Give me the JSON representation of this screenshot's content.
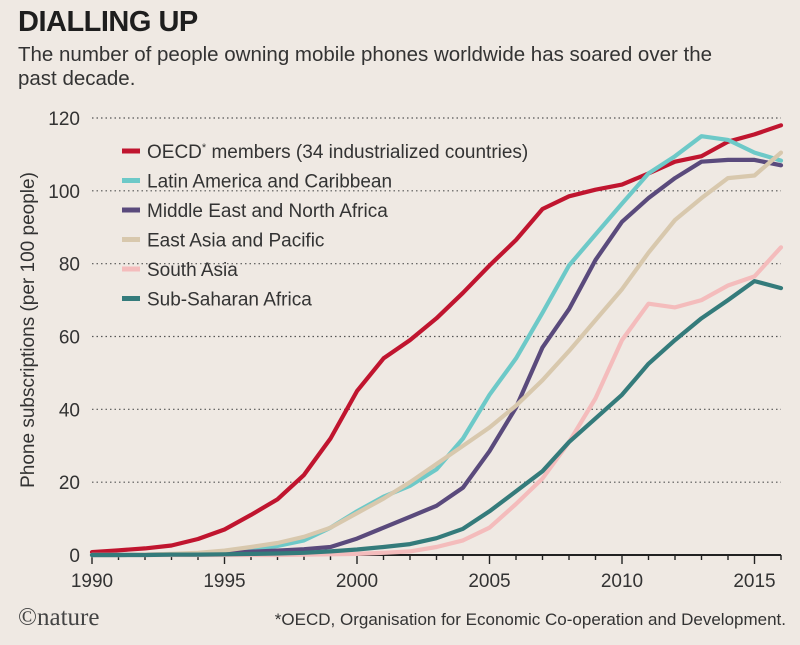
{
  "header": {
    "title": "DIALLING UP",
    "subtitle": "The number of people owning mobile phones worldwide has soared over the past decade."
  },
  "footer": {
    "logo": "©nature",
    "footnote": "*OECD, Organisation for Economic Co-operation and Development."
  },
  "chart_data": {
    "type": "line",
    "ylabel": "Phone subscriptions (per 100 people)",
    "xlim": [
      1990,
      2016
    ],
    "ylim": [
      0,
      120
    ],
    "xticks": [
      1990,
      1995,
      2000,
      2005,
      2010,
      2015
    ],
    "yticks": [
      0,
      20,
      40,
      60,
      80,
      100,
      120
    ],
    "grid": "horizontal dotted",
    "legend_position": "top-left",
    "x": [
      1990,
      1991,
      1992,
      1993,
      1994,
      1995,
      1996,
      1997,
      1998,
      1999,
      2000,
      2001,
      2002,
      2003,
      2004,
      2005,
      2006,
      2007,
      2008,
      2009,
      2010,
      2011,
      2012,
      2013,
      2014,
      2015,
      2016
    ],
    "series": [
      {
        "name": "OECD",
        "name_sup": "*",
        "name_suffix": " members (34 industrialized countries)",
        "color": "#c0152f",
        "values": [
          0.8,
          1.3,
          1.8,
          2.6,
          4.4,
          7,
          11,
          15.3,
          22,
          32,
          45,
          54,
          59,
          65,
          72,
          79.5,
          86.5,
          95,
          98.5,
          100.3,
          101.7,
          104.8,
          108,
          109.5,
          113.5,
          115.5,
          118
        ]
      },
      {
        "name": "Latin America and Caribbean",
        "color": "#6dc9c8",
        "values": [
          0,
          0,
          0.1,
          0.2,
          0.4,
          0.8,
          1.3,
          2.5,
          4,
          7.5,
          12,
          16,
          19,
          23.5,
          32,
          44,
          54,
          66.5,
          79.5,
          88,
          96.5,
          104.8,
          109.5,
          115,
          114,
          110.5,
          108.3
        ]
      },
      {
        "name": "Middle East and North Africa",
        "color": "#5a4a7c",
        "values": [
          0,
          0,
          0.1,
          0.2,
          0.3,
          0.6,
          0.9,
          1.2,
          1.6,
          2.2,
          4.5,
          7.5,
          10.5,
          13.5,
          18.5,
          28.5,
          40.5,
          57,
          67.5,
          81,
          91.5,
          98,
          103.5,
          108,
          108.5,
          108.5,
          107
        ]
      },
      {
        "name": "East Asia and Pacific",
        "color": "#d8c8ad",
        "values": [
          0,
          0,
          0.1,
          0.3,
          0.6,
          1.2,
          2.2,
          3.3,
          5,
          7.5,
          11.5,
          15.5,
          20,
          25,
          30,
          35,
          41,
          48,
          56,
          64.5,
          73,
          83,
          92,
          98,
          103.5,
          104.2,
          110.5
        ]
      },
      {
        "name": "South Asia",
        "color": "#f4bcbc",
        "values": [
          0,
          0,
          0,
          0,
          0,
          0,
          0,
          0,
          0.1,
          0.2,
          0.3,
          0.6,
          1,
          2.2,
          4,
          7.5,
          14,
          21,
          31,
          43,
          59,
          69,
          68,
          70,
          74,
          76.5,
          84.5
        ]
      },
      {
        "name": "Sub-Saharan Africa",
        "color": "#347b7b",
        "values": [
          0,
          0,
          0,
          0.1,
          0.1,
          0.2,
          0.3,
          0.4,
          0.6,
          1,
          1.5,
          2.2,
          3,
          4.6,
          7.2,
          12,
          17.5,
          23,
          31,
          37.5,
          44,
          52.5,
          59,
          65,
          70,
          75.2,
          73.3
        ]
      }
    ]
  }
}
